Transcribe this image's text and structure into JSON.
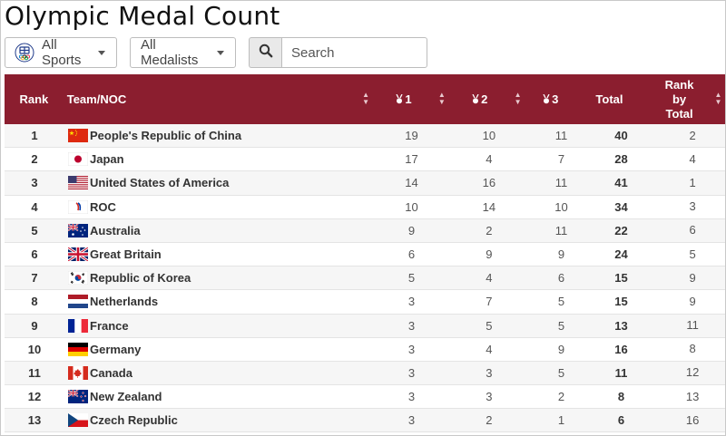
{
  "page": {
    "title": "Olympic Medal Count"
  },
  "filters": {
    "sports": {
      "label": "All Sports",
      "icon": "olympic-logo-icon"
    },
    "medalists": {
      "label": "All Medalists"
    },
    "search": {
      "placeholder": "Search",
      "icon": "search-icon"
    }
  },
  "table": {
    "headers": {
      "rank": "Rank",
      "team": "Team/NOC",
      "gold": "1",
      "silver": "2",
      "bronze": "3",
      "total": "Total",
      "rank_by_total": [
        "Rank",
        "by",
        "Total"
      ]
    },
    "colors": {
      "header_bg": "#8b1e2f",
      "header_text": "#ffffff"
    },
    "rows": [
      {
        "rank": "1",
        "team": "People's Republic of China",
        "flag": "china-flag-icon",
        "gold": "19",
        "silver": "10",
        "bronze": "11",
        "total": "40",
        "rank_by_total": "2"
      },
      {
        "rank": "2",
        "team": "Japan",
        "flag": "japan-flag-icon",
        "gold": "17",
        "silver": "4",
        "bronze": "7",
        "total": "28",
        "rank_by_total": "4"
      },
      {
        "rank": "3",
        "team": "United States of America",
        "flag": "usa-flag-icon",
        "gold": "14",
        "silver": "16",
        "bronze": "11",
        "total": "41",
        "rank_by_total": "1"
      },
      {
        "rank": "4",
        "team": "ROC",
        "flag": "roc-flag-icon",
        "gold": "10",
        "silver": "14",
        "bronze": "10",
        "total": "34",
        "rank_by_total": "3"
      },
      {
        "rank": "5",
        "team": "Australia",
        "flag": "australia-flag-icon",
        "gold": "9",
        "silver": "2",
        "bronze": "11",
        "total": "22",
        "rank_by_total": "6"
      },
      {
        "rank": "6",
        "team": "Great Britain",
        "flag": "great-britain-flag-icon",
        "gold": "6",
        "silver": "9",
        "bronze": "9",
        "total": "24",
        "rank_by_total": "5"
      },
      {
        "rank": "7",
        "team": "Republic of Korea",
        "flag": "korea-flag-icon",
        "gold": "5",
        "silver": "4",
        "bronze": "6",
        "total": "15",
        "rank_by_total": "9"
      },
      {
        "rank": "8",
        "team": "Netherlands",
        "flag": "netherlands-flag-icon",
        "gold": "3",
        "silver": "7",
        "bronze": "5",
        "total": "15",
        "rank_by_total": "9"
      },
      {
        "rank": "9",
        "team": "France",
        "flag": "france-flag-icon",
        "gold": "3",
        "silver": "5",
        "bronze": "5",
        "total": "13",
        "rank_by_total": "11"
      },
      {
        "rank": "10",
        "team": "Germany",
        "flag": "germany-flag-icon",
        "gold": "3",
        "silver": "4",
        "bronze": "9",
        "total": "16",
        "rank_by_total": "8"
      },
      {
        "rank": "11",
        "team": "Canada",
        "flag": "canada-flag-icon",
        "gold": "3",
        "silver": "3",
        "bronze": "5",
        "total": "11",
        "rank_by_total": "12"
      },
      {
        "rank": "12",
        "team": "New Zealand",
        "flag": "new-zealand-flag-icon",
        "gold": "3",
        "silver": "3",
        "bronze": "2",
        "total": "8",
        "rank_by_total": "13"
      },
      {
        "rank": "13",
        "team": "Czech Republic",
        "flag": "czech-republic-flag-icon",
        "gold": "3",
        "silver": "2",
        "bronze": "1",
        "total": "6",
        "rank_by_total": "16"
      }
    ]
  }
}
